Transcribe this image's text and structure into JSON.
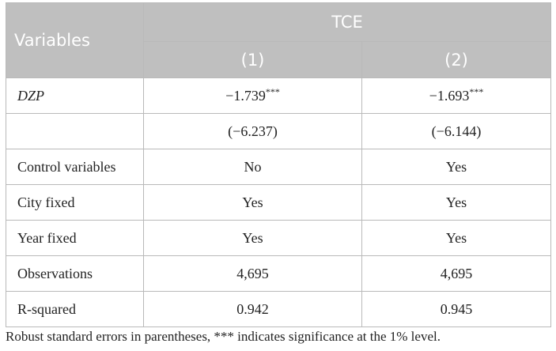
{
  "header": {
    "variables_label": "Variables",
    "group_label": "TCE",
    "col1_label": "(1)",
    "col2_label": "(2)"
  },
  "rows": [
    {
      "label": "DZP",
      "col1": "−1.739",
      "col1_sup": "***",
      "col2": "−1.693",
      "col2_sup": "***"
    },
    {
      "label": "",
      "col1": "(−6.237)",
      "col2": "(−6.144)"
    },
    {
      "label": "Control variables",
      "col1": "No",
      "col2": "Yes"
    },
    {
      "label": "City fixed",
      "col1": "Yes",
      "col2": "Yes"
    },
    {
      "label": "Year fixed",
      "col1": "Yes",
      "col2": "Yes"
    },
    {
      "label": "Observations",
      "col1": "4,695",
      "col2": "4,695"
    },
    {
      "label": "R-squared",
      "col1": "0.942",
      "col2": "0.945"
    }
  ],
  "note": "Robust standard errors in parentheses, *** indicates significance at the 1% level.",
  "colors": {
    "header_bg": "#bfbfbf",
    "header_text": "#ffffff",
    "border": "#b9b9b9"
  }
}
